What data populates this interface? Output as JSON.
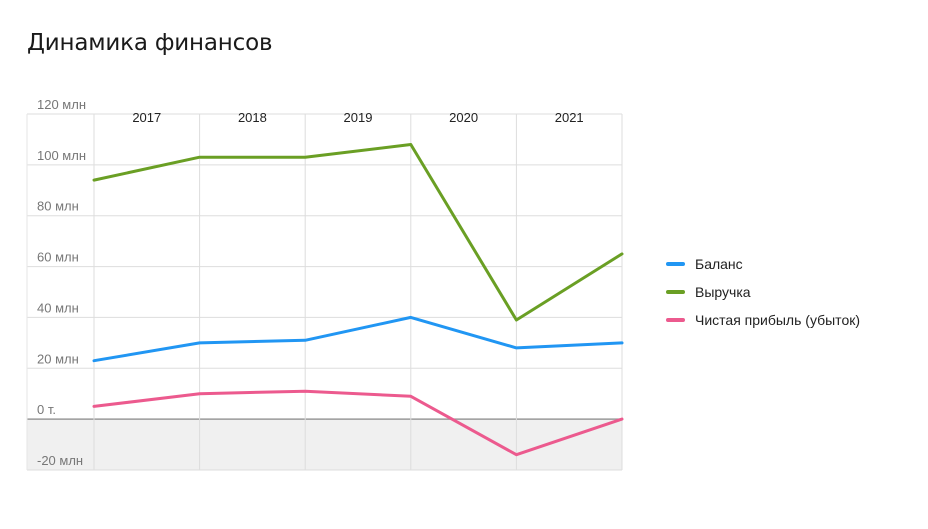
{
  "page": {
    "title": "Динамика финансов"
  },
  "chart_data": {
    "type": "line",
    "title": "Динамика финансов",
    "xlabel": "",
    "ylabel": "",
    "categories": [
      "2017",
      "2018",
      "2019",
      "2020",
      "2021"
    ],
    "x": [
      2016.5,
      2017.5,
      2018.5,
      2019.5,
      2020.5,
      2021.5
    ],
    "y_ticks": [
      {
        "value": 120,
        "label": "120 млн"
      },
      {
        "value": 100,
        "label": "100 млн"
      },
      {
        "value": 80,
        "label": "80 млн"
      },
      {
        "value": 60,
        "label": "60 млн"
      },
      {
        "value": 40,
        "label": "40 млн"
      },
      {
        "value": 20,
        "label": "20 млн"
      },
      {
        "value": 0,
        "label": "0 т."
      },
      {
        "value": -20,
        "label": "-20 млн"
      }
    ],
    "ylim": [
      -20,
      120
    ],
    "y_unit": "млн",
    "grid": true,
    "negative_region_shaded": true,
    "legend_position": "right",
    "series": [
      {
        "name": "Баланс",
        "color": "#2196f3",
        "values": [
          23,
          30,
          31,
          40,
          28,
          30
        ]
      },
      {
        "name": "Выручка",
        "color": "#6a9f24",
        "values": [
          94,
          103,
          103,
          108,
          39,
          65
        ]
      },
      {
        "name": "Чистая прибыль (убыток)",
        "color": "#ec5a8e",
        "values": [
          5,
          10,
          11,
          9,
          -14,
          0
        ]
      }
    ]
  }
}
